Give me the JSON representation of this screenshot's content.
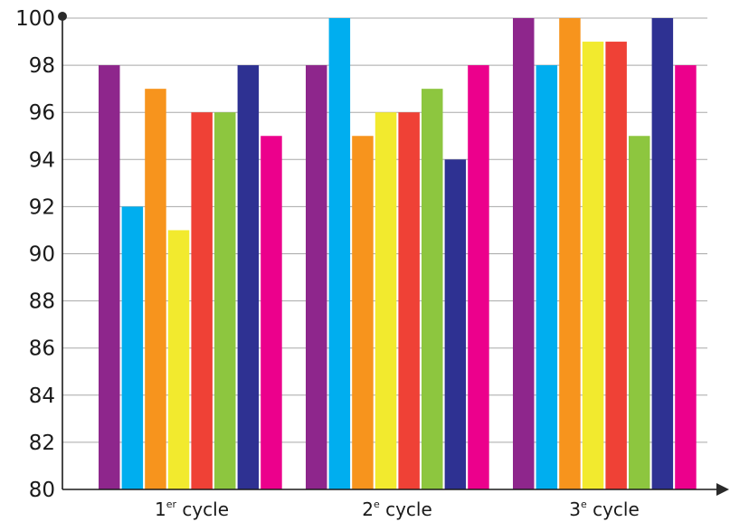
{
  "chart_data": {
    "type": "bar",
    "categories": [
      {
        "main": "1",
        "sup": "er",
        "suffix": " cycle"
      },
      {
        "main": "2",
        "sup": "e",
        "suffix": " cycle"
      },
      {
        "main": "3",
        "sup": "e",
        "suffix": " cycle"
      }
    ],
    "series": [
      {
        "color": "#8E268C",
        "values": [
          98,
          98,
          100
        ]
      },
      {
        "color": "#00AEEF",
        "values": [
          92,
          100,
          98
        ]
      },
      {
        "color": "#F7941D",
        "values": [
          97,
          95,
          100
        ]
      },
      {
        "color": "#F2EA2E",
        "values": [
          91,
          96,
          99
        ]
      },
      {
        "color": "#EF4136",
        "values": [
          96,
          96,
          99
        ]
      },
      {
        "color": "#8DC63F",
        "values": [
          96,
          97,
          95
        ]
      },
      {
        "color": "#2E3192",
        "values": [
          98,
          94,
          100
        ]
      },
      {
        "color": "#EC008C",
        "values": [
          95,
          98,
          98
        ]
      }
    ],
    "ylim": [
      80,
      100
    ],
    "yticks": [
      "80",
      "82",
      "84",
      "86",
      "88",
      "90",
      "92",
      "94",
      "96",
      "98",
      "100"
    ],
    "grid": true,
    "legend": "none",
    "title": "",
    "xlabel": "",
    "ylabel": ""
  }
}
